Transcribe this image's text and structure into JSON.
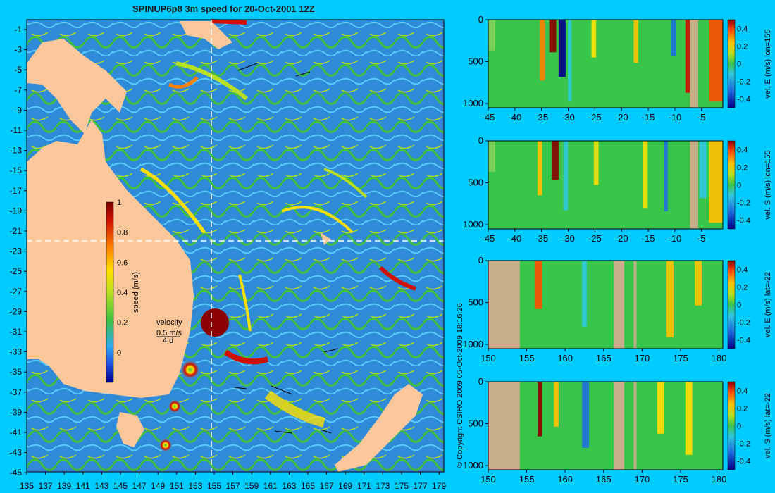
{
  "title": "SPINUP6p8 3m speed for 20-Oct-2001 12Z",
  "copyright": "© Copyright CSIRO 2009   05-Oct-2009 18:16:26",
  "map": {
    "y_ticks": [
      "-1",
      "-3",
      "-5",
      "-7",
      "-9",
      "-11",
      "-13",
      "-15",
      "-17",
      "-19",
      "-21",
      "-23",
      "-25",
      "-27",
      "-29",
      "-31",
      "-33",
      "-35",
      "-37",
      "-39",
      "-41",
      "-43",
      "-45"
    ],
    "x_ticks": [
      "135",
      "137",
      "139",
      "141",
      "143",
      "145",
      "147",
      "149",
      "151",
      "153",
      "155",
      "157",
      "159",
      "161",
      "163",
      "165",
      "167",
      "169",
      "171",
      "173",
      "175",
      "177",
      "179"
    ],
    "colorbar": {
      "label": "speed (m/s)",
      "ticks": [
        "1",
        "0.8",
        "0.6",
        "0.4",
        "0.2",
        "0"
      ]
    },
    "velocity_key": {
      "title": "velocity",
      "speed": "0.5 m/s",
      "days": "4 d"
    },
    "section_lines": {
      "lon": 155,
      "lat": -22
    }
  },
  "panels": [
    {
      "label": "vel. E (m/s) lon=155",
      "x_ticks": [
        "-45",
        "-40",
        "-35",
        "-30",
        "-25",
        "-20",
        "-15",
        "-10",
        "-5"
      ],
      "y_ticks": [
        "0",
        "500",
        "1000"
      ],
      "cb_ticks": [
        "0.4",
        "0.2",
        "0",
        "-0.2",
        "-0.4"
      ]
    },
    {
      "label": "vel. S (m/s) lon=155",
      "x_ticks": [
        "-45",
        "-40",
        "-35",
        "-30",
        "-25",
        "-20",
        "-15",
        "-10",
        "-5"
      ],
      "y_ticks": [
        "0",
        "500",
        "1000"
      ],
      "cb_ticks": [
        "0.4",
        "0.2",
        "0",
        "-0.2",
        "-0.4"
      ]
    },
    {
      "label": "vel. E (m/s) lat=-22",
      "x_ticks": [
        "150",
        "155",
        "160",
        "165",
        "170",
        "175",
        "180"
      ],
      "y_ticks": [
        "0",
        "500",
        "1000"
      ],
      "cb_ticks": [
        "0.4",
        "0.2",
        "0",
        "-0.2",
        "-0.4"
      ]
    },
    {
      "label": "vel. S (m/s) lat=-22",
      "x_ticks": [
        "150",
        "155",
        "160",
        "165",
        "170",
        "175",
        "180"
      ],
      "y_ticks": [
        "0",
        "500",
        "1000"
      ],
      "cb_ticks": [
        "0.4",
        "0.2",
        "0",
        "-0.2",
        "-0.4"
      ]
    }
  ],
  "colors": {
    "background": "#00ccff",
    "land": "#fcc89b",
    "ocean_slow": "#2f6fd8",
    "ocean_mid": "#3fbf3f",
    "ocean_fast": "#8b0000",
    "section_land": "#c8ad8a",
    "section_zero": "#39c44a"
  }
}
